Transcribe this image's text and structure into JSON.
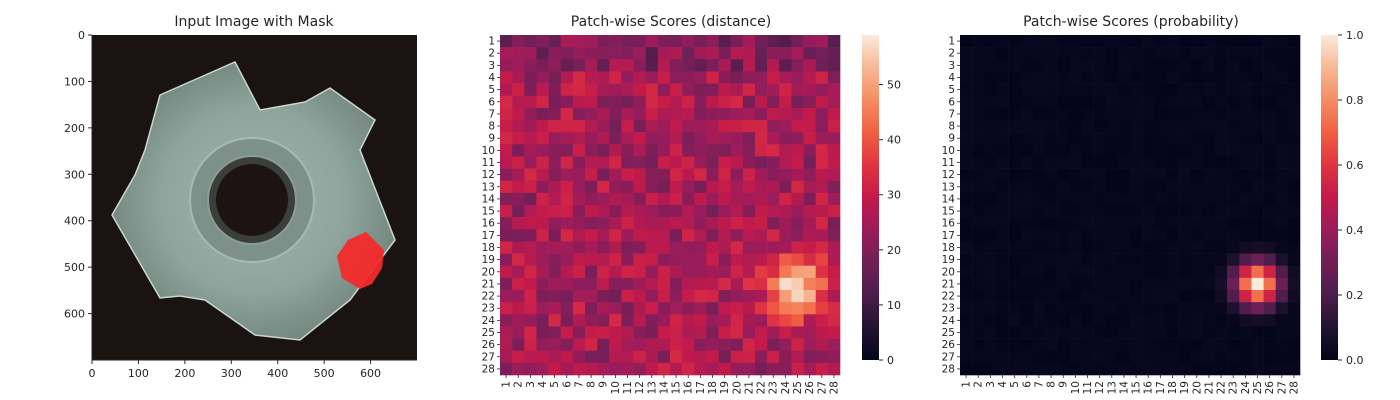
{
  "chart_data": [
    {
      "type": "image",
      "title": "Input Image with Mask",
      "xticks": [
        "0",
        "100",
        "200",
        "300",
        "400",
        "500",
        "600"
      ],
      "yticks": [
        "0",
        "100",
        "200",
        "300",
        "400",
        "500",
        "600"
      ],
      "xlim": [
        0,
        700
      ],
      "ylim": [
        700,
        0
      ],
      "image_description_icon": "metal-tee-nut-photo",
      "mask_color": "#ff2a2a",
      "mask_location_data_units": {
        "x": [
          540,
          640
        ],
        "y": [
          420,
          545
        ]
      }
    },
    {
      "type": "heatmap",
      "title": "Patch-wise Scores (distance)",
      "rows": 28,
      "cols": 28,
      "row_labels": [
        "1",
        "2",
        "3",
        "4",
        "5",
        "6",
        "7",
        "8",
        "9",
        "10",
        "11",
        "12",
        "13",
        "14",
        "15",
        "16",
        "17",
        "18",
        "19",
        "20",
        "21",
        "22",
        "23",
        "24",
        "25",
        "26",
        "27",
        "28"
      ],
      "col_labels": [
        "1",
        "2",
        "3",
        "4",
        "5",
        "6",
        "7",
        "8",
        "9",
        "10",
        "11",
        "12",
        "13",
        "14",
        "15",
        "16",
        "17",
        "18",
        "19",
        "20",
        "21",
        "22",
        "23",
        "24",
        "25",
        "26",
        "27",
        "28"
      ],
      "colorbar_ticks": [
        "0",
        "10",
        "20",
        "30",
        "40",
        "50"
      ],
      "vmin": 0,
      "vmax": 59,
      "colormap": "rocket",
      "background_range": [
        18,
        33
      ],
      "anomaly_peak": {
        "row": 21,
        "col": 25,
        "value": 59
      }
    },
    {
      "type": "heatmap",
      "title": "Patch-wise Scores (probability)",
      "rows": 28,
      "cols": 28,
      "row_labels": [
        "1",
        "2",
        "3",
        "4",
        "5",
        "6",
        "7",
        "8",
        "9",
        "10",
        "11",
        "12",
        "13",
        "14",
        "15",
        "16",
        "17",
        "18",
        "19",
        "20",
        "21",
        "22",
        "23",
        "24",
        "25",
        "26",
        "27",
        "28"
      ],
      "col_labels": [
        "1",
        "2",
        "3",
        "4",
        "5",
        "6",
        "7",
        "8",
        "9",
        "10",
        "11",
        "12",
        "13",
        "14",
        "15",
        "16",
        "17",
        "18",
        "19",
        "20",
        "21",
        "22",
        "23",
        "24",
        "25",
        "26",
        "27",
        "28"
      ],
      "colorbar_ticks": [
        "0.0",
        "0.2",
        "0.4",
        "0.6",
        "0.8",
        "1.0"
      ],
      "vmin": 0,
      "vmax": 1,
      "colormap": "rocket",
      "background_value": 0.02,
      "anomaly_peak": {
        "row": 21,
        "col": 25,
        "value": 1.0
      }
    }
  ]
}
